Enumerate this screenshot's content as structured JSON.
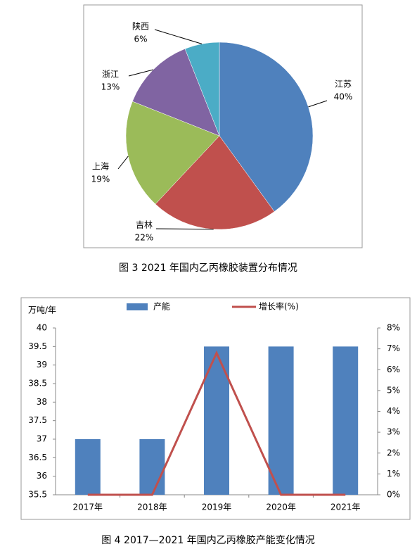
{
  "chart_data": [
    {
      "type": "pie",
      "title": "图 3 2021 年国内乙丙橡胶装置分布情况",
      "categories": [
        "江苏",
        "吉林",
        "上海",
        "浙江",
        "陕西"
      ],
      "values": [
        40,
        22,
        19,
        13,
        6
      ],
      "value_labels": [
        "40%",
        "22%",
        "19%",
        "13%",
        "6%"
      ],
      "colors": [
        "#4f81bd",
        "#c0504d",
        "#9bbb59",
        "#8064a2",
        "#4bacc6"
      ]
    },
    {
      "type": "bar",
      "title": "图 4 2017—2021 年国内乙丙橡胶产能变化情况",
      "y_label": "万吨/年",
      "categories": [
        "2017年",
        "2018年",
        "2019年",
        "2020年",
        "2021年"
      ],
      "series": [
        {
          "name": "产能",
          "type": "bar",
          "color": "#4f81bd",
          "values": [
            37,
            37,
            39.5,
            39.5,
            39.5
          ]
        },
        {
          "name": "增长率(%)",
          "type": "line",
          "axis": "y2",
          "color": "#c0504d",
          "values": [
            0,
            0,
            6.8,
            0,
            0
          ]
        }
      ],
      "ylim": [
        35.5,
        40
      ],
      "yticks": [
        35.5,
        36,
        36.5,
        37,
        37.5,
        38,
        38.5,
        39,
        39.5,
        40
      ],
      "y2lim": [
        0,
        8
      ],
      "y2ticks": [
        {
          "value": 0,
          "label": "0%"
        },
        {
          "value": 1,
          "label": "1%"
        },
        {
          "value": 2,
          "label": "2%"
        },
        {
          "value": 3,
          "label": "3%"
        },
        {
          "value": 4,
          "label": "4%"
        },
        {
          "value": 5,
          "label": "5%"
        },
        {
          "value": 6,
          "label": "6%"
        },
        {
          "value": 7,
          "label": "7%"
        },
        {
          "value": 8,
          "label": "8%"
        }
      ],
      "grid": false,
      "legend": "top"
    }
  ]
}
